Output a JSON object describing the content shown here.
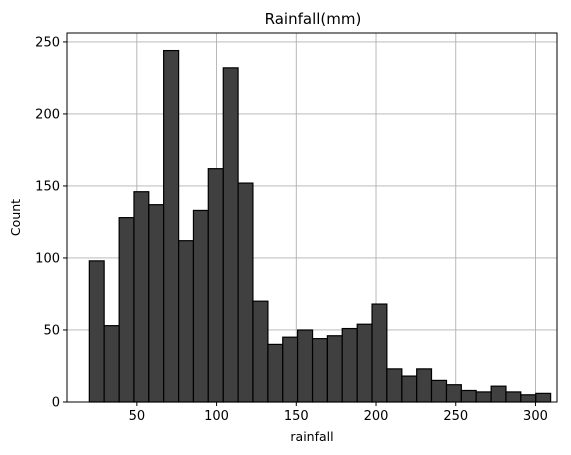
{
  "chart_data": {
    "type": "bar",
    "title": "Rainfall(mm)",
    "xlabel": "rainfall",
    "ylabel": "Count",
    "bin_width": 9.33,
    "bins": [
      {
        "x0": 20.2,
        "x1": 29.5,
        "count": 98
      },
      {
        "x0": 29.5,
        "x1": 38.9,
        "count": 53
      },
      {
        "x0": 38.9,
        "x1": 48.2,
        "count": 128
      },
      {
        "x0": 48.2,
        "x1": 57.5,
        "count": 146
      },
      {
        "x0": 57.5,
        "x1": 66.8,
        "count": 137
      },
      {
        "x0": 66.8,
        "x1": 76.2,
        "count": 244
      },
      {
        "x0": 76.2,
        "x1": 85.5,
        "count": 112
      },
      {
        "x0": 85.5,
        "x1": 94.8,
        "count": 133
      },
      {
        "x0": 94.8,
        "x1": 104.2,
        "count": 162
      },
      {
        "x0": 104.2,
        "x1": 113.5,
        "count": 232
      },
      {
        "x0": 113.5,
        "x1": 122.8,
        "count": 152
      },
      {
        "x0": 122.8,
        "x1": 132.2,
        "count": 70
      },
      {
        "x0": 132.2,
        "x1": 141.5,
        "count": 40
      },
      {
        "x0": 141.5,
        "x1": 150.8,
        "count": 45
      },
      {
        "x0": 150.8,
        "x1": 160.2,
        "count": 50
      },
      {
        "x0": 160.2,
        "x1": 169.5,
        "count": 44
      },
      {
        "x0": 169.5,
        "x1": 178.8,
        "count": 46
      },
      {
        "x0": 178.8,
        "x1": 188.2,
        "count": 51
      },
      {
        "x0": 188.2,
        "x1": 197.5,
        "count": 54
      },
      {
        "x0": 197.5,
        "x1": 206.8,
        "count": 68
      },
      {
        "x0": 206.8,
        "x1": 216.2,
        "count": 23
      },
      {
        "x0": 216.2,
        "x1": 225.5,
        "count": 18
      },
      {
        "x0": 225.5,
        "x1": 234.8,
        "count": 23
      },
      {
        "x0": 234.8,
        "x1": 244.2,
        "count": 15
      },
      {
        "x0": 244.2,
        "x1": 253.5,
        "count": 12
      },
      {
        "x0": 253.5,
        "x1": 262.8,
        "count": 8
      },
      {
        "x0": 262.8,
        "x1": 272.2,
        "count": 7
      },
      {
        "x0": 272.2,
        "x1": 281.5,
        "count": 11
      },
      {
        "x0": 281.5,
        "x1": 290.8,
        "count": 7
      },
      {
        "x0": 290.8,
        "x1": 300.2,
        "count": 5
      },
      {
        "x0": 300.2,
        "x1": 309.5,
        "count": 6
      }
    ],
    "xlim": [
      6.2,
      313.5
    ],
    "ylim": [
      0,
      256.2
    ],
    "x_ticks": [
      50,
      100,
      150,
      200,
      250,
      300
    ],
    "y_ticks": [
      0,
      50,
      100,
      150,
      200,
      250
    ],
    "grid": true,
    "legend": "none",
    "colors": {
      "bar_fill": "#404040",
      "bar_edge": "#000000",
      "grid": "#b0b0b0"
    }
  }
}
